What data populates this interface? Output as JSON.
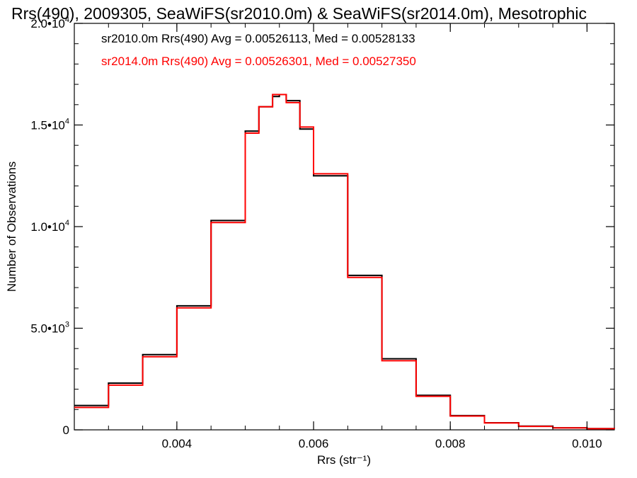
{
  "chart_data": {
    "type": "line",
    "title": "Rrs(490), 2009305, SeaWiFS(sr2010.0m) & SeaWiFS(sr2014.0m), Mesotrophic",
    "xlabel": "Rrs (str⁻¹)",
    "ylabel": "Number of Observations",
    "xlim": [
      0.0025,
      0.0104
    ],
    "ylim": [
      0,
      20000
    ],
    "x_ticks": [
      {
        "value": 0.004,
        "label": "0.004"
      },
      {
        "value": 0.006,
        "label": "0.006"
      },
      {
        "value": 0.008,
        "label": "0.008"
      },
      {
        "value": 0.01,
        "label": "0.010"
      }
    ],
    "y_ticks": [
      {
        "value": 0,
        "label": "0"
      },
      {
        "value": 5000,
        "mant": "5.0•1",
        "base": "0",
        "exp": "3"
      },
      {
        "value": 10000,
        "mant": "1.0•1",
        "base": "0",
        "exp": "4"
      },
      {
        "value": 15000,
        "mant": "1.5•1",
        "base": "0",
        "exp": "4"
      },
      {
        "value": 20000,
        "mant": "2.0•1",
        "base": "0",
        "exp": "4"
      }
    ],
    "grid": false,
    "legend": [
      {
        "text": "sr2010.0m Rrs(490) Avg = 0.00526113, Med = 0.00528133",
        "color": "#000000"
      },
      {
        "text": "sr2014.0m Rrs(490) Avg = 0.00526301, Med = 0.00527350",
        "color": "#ff0000"
      }
    ],
    "legend_position": "top-left",
    "series": [
      {
        "color": "#000000",
        "style": "step",
        "x": [
          0.0025,
          0.003,
          0.0035,
          0.004,
          0.0045,
          0.005,
          0.0052,
          0.0054,
          0.0055,
          0.0056,
          0.0058,
          0.006,
          0.0065,
          0.007,
          0.0075,
          0.008,
          0.0085,
          0.009,
          0.0095,
          0.01,
          0.0104
        ],
        "y": [
          1200,
          2300,
          3700,
          6100,
          10300,
          14700,
          15900,
          16400,
          16500,
          16200,
          14800,
          12500,
          7600,
          3500,
          1700,
          700,
          350,
          180,
          100,
          60,
          40
        ]
      },
      {
        "color": "#ff0000",
        "style": "step",
        "x": [
          0.0025,
          0.003,
          0.0035,
          0.004,
          0.0045,
          0.005,
          0.0052,
          0.0054,
          0.0055,
          0.0056,
          0.0058,
          0.006,
          0.0065,
          0.007,
          0.0075,
          0.008,
          0.0085,
          0.009,
          0.0095,
          0.01,
          0.0104
        ],
        "y": [
          1100,
          2200,
          3600,
          6000,
          10200,
          14600,
          15900,
          16500,
          16500,
          16100,
          14900,
          12600,
          7500,
          3400,
          1650,
          680,
          340,
          170,
          95,
          55,
          35
        ]
      }
    ]
  }
}
